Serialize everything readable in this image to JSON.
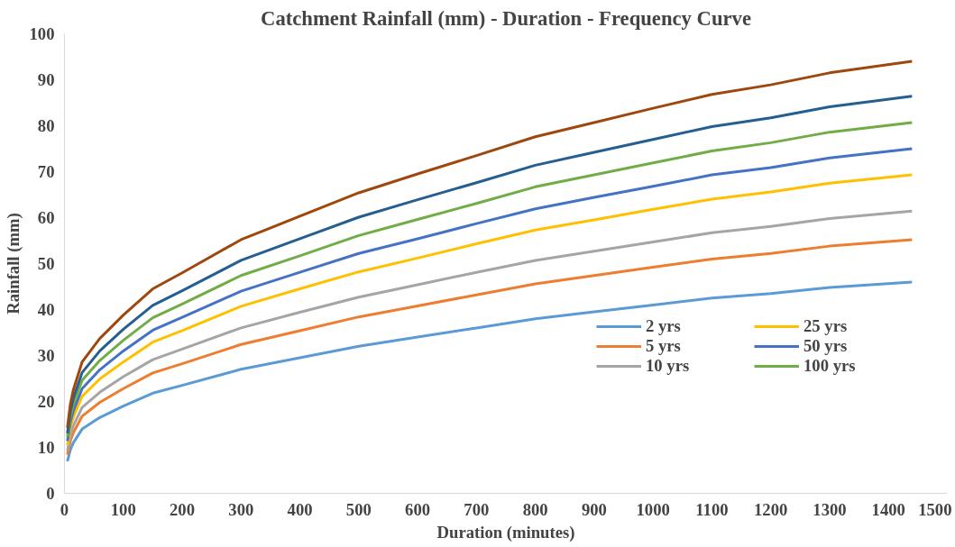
{
  "chart_data": {
    "type": "line",
    "title": "Catchment Rainfall (mm) - Duration - Frequency Curve",
    "xlabel": "Duration (minutes)",
    "ylabel": "Rainfall (mm)",
    "x": [
      5,
      10,
      15,
      30,
      60,
      100,
      150,
      200,
      300,
      400,
      500,
      600,
      700,
      800,
      900,
      1000,
      1100,
      1200,
      1300,
      1440
    ],
    "series": [
      {
        "name": "2 yrs",
        "color": "#5b9bd5",
        "values": [
          7,
          9.5,
          11,
          14,
          16.5,
          19,
          21.8,
          23.5,
          27,
          29.5,
          32,
          34,
          36,
          38,
          39.5,
          41,
          42.5,
          43.5,
          44.8,
          46
        ]
      },
      {
        "name": "5 yrs",
        "color": "#ed7d31",
        "values": [
          8.4,
          11.4,
          13.2,
          16.8,
          19.8,
          22.8,
          26.2,
          28.2,
          32.4,
          35.4,
          38.4,
          40.8,
          43.2,
          45.6,
          47.4,
          49.2,
          51,
          52.2,
          53.8,
          55.2
        ]
      },
      {
        "name": "10 yrs",
        "color": "#a5a5a5",
        "values": [
          9.3,
          12.7,
          14.7,
          18.7,
          22,
          25.4,
          29.1,
          31.4,
          36,
          39.4,
          42.7,
          45.4,
          48.1,
          50.7,
          52.7,
          54.7,
          56.7,
          58.1,
          59.8,
          61.4
        ]
      },
      {
        "name": "25 yrs",
        "color": "#ffc000",
        "values": [
          10.5,
          14.3,
          16.6,
          21.1,
          24.9,
          28.6,
          32.9,
          35.4,
          40.7,
          44.5,
          48.2,
          51.2,
          54.3,
          57.3,
          59.5,
          61.8,
          64,
          65.6,
          67.5,
          69.3
        ]
      },
      {
        "name": "50 yrs",
        "color": "#4472c4",
        "values": [
          11.4,
          15.5,
          17.9,
          22.8,
          26.9,
          31,
          35.5,
          38.3,
          44,
          48.1,
          52.2,
          55.4,
          58.7,
          61.9,
          64.4,
          66.8,
          69.3,
          70.9,
          73,
          75
        ]
      },
      {
        "name": "100 yrs",
        "color": "#70ad47",
        "values": [
          12.3,
          16.7,
          19.3,
          24.6,
          28.9,
          33.3,
          38.2,
          41.2,
          47.4,
          51.7,
          56.1,
          59.6,
          63.1,
          66.7,
          69.3,
          71.9,
          74.5,
          76.3,
          78.6,
          80.7
        ]
      },
      {
        "color": "#255e91",
        "values": [
          13.1,
          17.8,
          20.7,
          26.3,
          31,
          35.7,
          40.9,
          44.1,
          50.7,
          55.4,
          60.1,
          63.9,
          67.6,
          71.4,
          74.2,
          77,
          79.8,
          81.7,
          84.1,
          86.4
        ]
      },
      {
        "color": "#9e480e",
        "values": [
          14.3,
          19.4,
          22.5,
          28.6,
          33.7,
          38.8,
          44.5,
          48,
          55.2,
          60.3,
          65.4,
          69.5,
          73.5,
          77.6,
          80.7,
          83.8,
          86.8,
          88.9,
          91.5,
          94
        ]
      }
    ],
    "xlim": [
      0,
      1500
    ],
    "xticks": [
      0,
      100,
      200,
      300,
      400,
      500,
      600,
      700,
      800,
      900,
      1000,
      1100,
      1200,
      1300,
      1400,
      1500
    ],
    "ylim": [
      0,
      100
    ],
    "yticks": [
      0,
      10,
      20,
      30,
      40,
      50,
      60,
      70,
      80,
      90,
      100
    ],
    "grid": false,
    "legend": "right",
    "line_style": "solid",
    "marker": "none"
  }
}
